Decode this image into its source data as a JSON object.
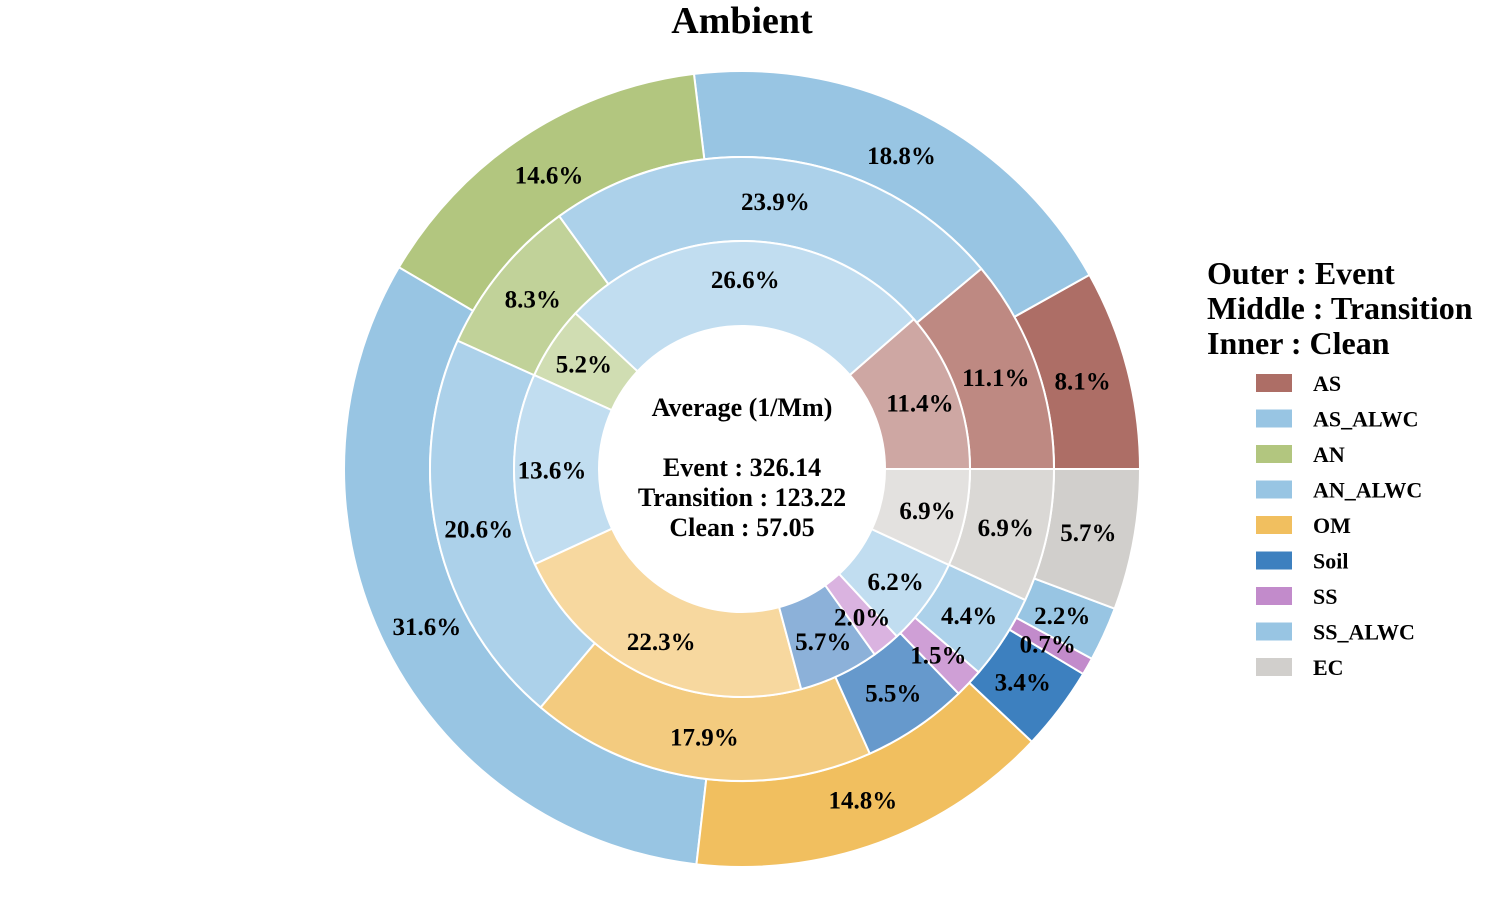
{
  "chart_data": {
    "type": "pie",
    "title": "Ambient",
    "categories": [
      "AS",
      "AS_ALWC",
      "AN",
      "AN_ALWC",
      "OM",
      "Soil",
      "SS",
      "SS_ALWC",
      "EC"
    ],
    "series": [
      {
        "name": "Event",
        "values": [
          8.1,
          18.8,
          14.6,
          31.6,
          14.8,
          3.4,
          0.7,
          2.2,
          5.7
        ],
        "labels": [
          "8.1%",
          "18.8%",
          "14.6%",
          "31.6%",
          "14.8%",
          "3.4%",
          "0.7%",
          "2.2%",
          "5.7%"
        ]
      },
      {
        "name": "Transition",
        "values": [
          11.1,
          23.9,
          8.3,
          20.6,
          17.9,
          5.5,
          1.5,
          4.4,
          6.9
        ],
        "labels": [
          "11.1%",
          "23.9%",
          "8.3%",
          "20.6%",
          "17.9%",
          "5.5%",
          "1.5%",
          "4.4%",
          "6.9%"
        ]
      },
      {
        "name": "Clean",
        "values": [
          11.4,
          26.6,
          5.2,
          13.6,
          22.3,
          5.7,
          2.0,
          6.2,
          6.9
        ],
        "labels": [
          "11.4%",
          "26.6%",
          "5.2%",
          "13.6%",
          "22.3%",
          "5.7%",
          "2.0%",
          "6.2%",
          "6.9%"
        ]
      }
    ],
    "colors": {
      "outer": [
        "#ad6e66",
        "#98c5e3",
        "#b2c67f",
        "#98c5e3",
        "#f1bf5f",
        "#3d80bf",
        "#c28bcb",
        "#98c5e3",
        "#d1cfcc"
      ],
      "middle": [
        "#be8982",
        "#acd1ea",
        "#c1d299",
        "#acd1ea",
        "#f3cb7f",
        "#6699cc",
        "#cf9fd6",
        "#acd1ea",
        "#dad8d5"
      ],
      "inner": [
        "#cea7a3",
        "#c1ddf0",
        "#d0ddb2",
        "#c1ddf0",
        "#f7d89f",
        "#8cb1d9",
        "#dab3e0",
        "#c1ddf0",
        "#e3e1df"
      ]
    },
    "legend_placement": "right",
    "legend_header": [
      "Outer : Event",
      "Middle : Transition",
      "Inner : Clean"
    ],
    "center_text": {
      "heading": "Average (1/Mm)",
      "lines": [
        "Event : 326.14",
        "Transition : 123.22",
        "Clean : 57.05"
      ]
    }
  }
}
